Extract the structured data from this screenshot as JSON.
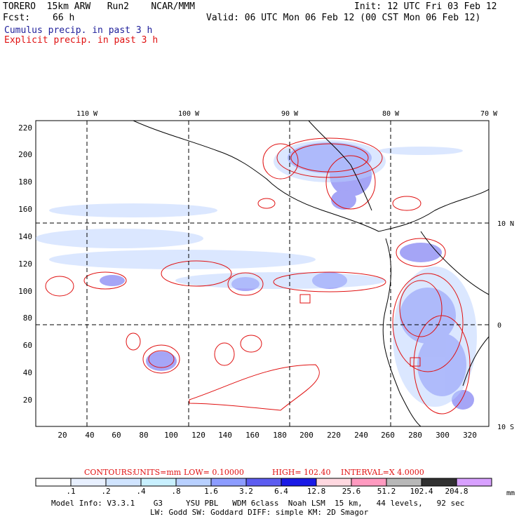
{
  "header": {
    "model_line": "TORERO  15km ARW   Run2    NCAR/MMM",
    "init_line": "Init: 12 UTC Fri 03 Feb 12",
    "fcst_label": "Fcst:",
    "fcst_value": "66 h",
    "valid_line": "Valid: 06 UTC Mon 06 Feb 12 (00 CST Mon 06 Feb 12)",
    "cumulus_label": "Cumulus precip. in past 3 h",
    "explicit_label": "Explicit precip. in past 3 h"
  },
  "map": {
    "top_lon_labels": [
      "110 W",
      "100 W",
      "90 W",
      "80 W",
      "70 W"
    ],
    "right_lat_labels": [
      "10 N",
      "0",
      "10 S"
    ],
    "left_y_ticks": [
      "220",
      "200",
      "180",
      "160",
      "140",
      "120",
      "100",
      "80",
      "60",
      "40",
      "20"
    ],
    "bottom_x_ticks": [
      "20",
      "40",
      "60",
      "80",
      "100",
      "120",
      "140",
      "160",
      "180",
      "200",
      "220",
      "240",
      "260",
      "280",
      "300",
      "320"
    ]
  },
  "contours_info": {
    "label": "CONTOURS:",
    "units": "UNITS=mm",
    "low": "LOW= 0.10000",
    "high": "HIGH=  102.40",
    "interval": "INTERVAL=X  4.0000"
  },
  "colorbar": {
    "labels": [
      ".1",
      ".2",
      ".4",
      ".8",
      "1.6",
      "3.2",
      "6.4",
      "12.8",
      "25.6",
      "51.2",
      "102.4",
      "204.8"
    ],
    "units": "mm",
    "colors": [
      "#ffffff",
      "#e8f0ff",
      "#d0e4ff",
      "#c8f0ff",
      "#b8d0ff",
      "#8c9cff",
      "#5c5cf0",
      "#1a1ae6",
      "#ffd8e0",
      "#ff9ac0",
      "#b8b8b8",
      "#303030",
      "#d8a0ff"
    ]
  },
  "footer": {
    "line1": "Model Info: V3.3.1    G3     YSU PBL   WDM 6class  Noah LSM  15 km,   44 levels,   92 sec",
    "line2": "LW: Godd SW: Goddard DIFF: simple KM: 2D Smagor"
  }
}
